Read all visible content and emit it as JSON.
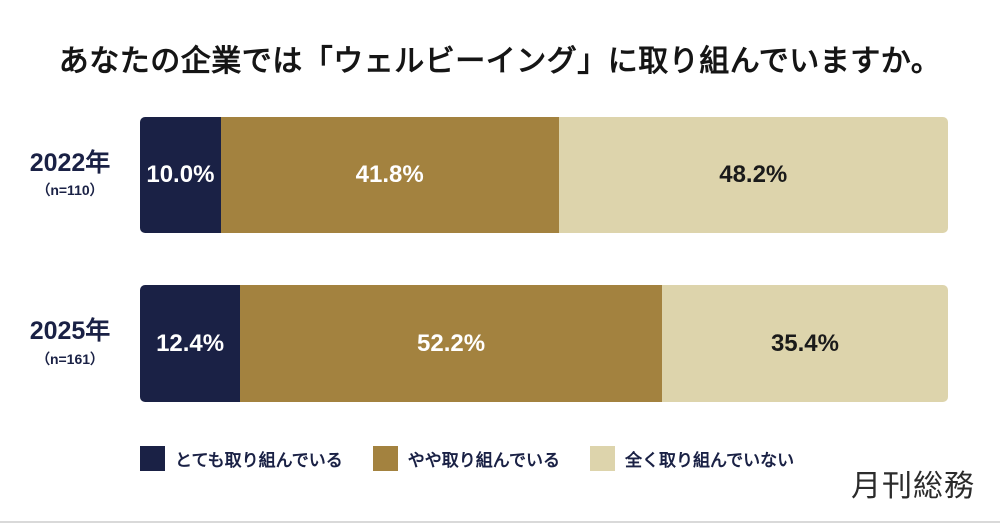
{
  "title": "あなたの企業では「ウェルビーイング」に取り組んでいますか。",
  "logo": {
    "text": "月刊総務"
  },
  "colors": {
    "background": "#ffffff",
    "title_text": "#151515",
    "axis_label_text": "#1a2145",
    "bottom_border": "#d9d9d9"
  },
  "chart_data": {
    "type": "bar",
    "orientation": "horizontal-stacked",
    "title": "あなたの企業では「ウェルビーイング」に取り組んでいますか。",
    "categories": [
      "2022年",
      "2025年"
    ],
    "category_sublabels": [
      "（n=110）",
      "（n=161）"
    ],
    "series": [
      {
        "name": "とても取り組んでいる",
        "color": "#1a2145",
        "label_color": "#ffffff",
        "values": [
          10.0,
          12.4
        ]
      },
      {
        "name": "やや取り組んでいる",
        "color": "#a3823f",
        "label_color": "#ffffff",
        "values": [
          41.8,
          52.2
        ]
      },
      {
        "name": "全く取り組んでいない",
        "color": "#ddd4ac",
        "label_color": "#1a1a1a",
        "values": [
          48.2,
          35.4
        ]
      }
    ],
    "value_labels": [
      [
        "10.0%",
        "41.8%",
        "48.2%"
      ],
      [
        "12.4%",
        "52.2%",
        "35.4%"
      ]
    ],
    "xlim": [
      0,
      100
    ],
    "grid": false,
    "legend_position": "bottom"
  }
}
